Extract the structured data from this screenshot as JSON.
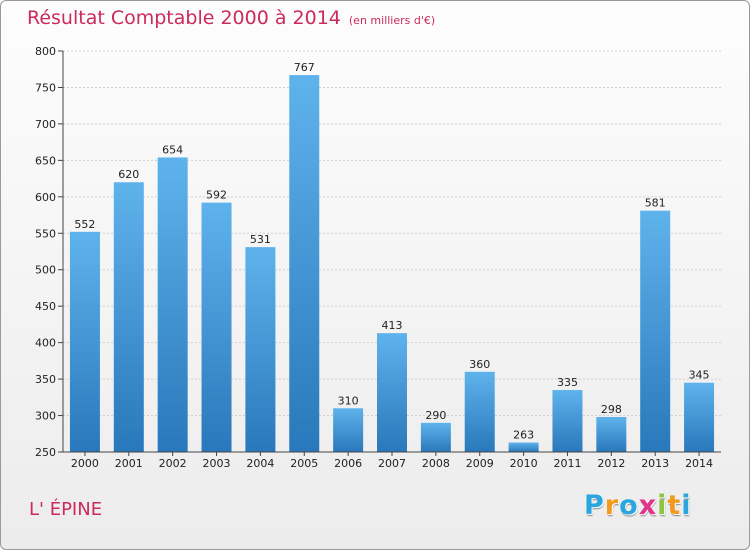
{
  "chart_data": {
    "type": "bar",
    "title": "Résultat Comptable 2000 à 2014",
    "subtitle": "(en milliers d'€)",
    "categories": [
      "2000",
      "2001",
      "2002",
      "2003",
      "2004",
      "2005",
      "2006",
      "2007",
      "2008",
      "2009",
      "2010",
      "2011",
      "2012",
      "2013",
      "2014"
    ],
    "values": [
      552,
      620,
      654,
      592,
      531,
      767,
      310,
      413,
      290,
      360,
      263,
      335,
      298,
      581,
      345
    ],
    "ylim": [
      250,
      800
    ],
    "yticks": [
      250,
      300,
      350,
      400,
      450,
      500,
      550,
      600,
      650,
      700,
      750,
      800
    ],
    "grid": true,
    "xlabel": "",
    "ylabel": ""
  },
  "commune": "L' ÉPINE",
  "logo": {
    "letters": [
      "P",
      "r",
      "o",
      "x",
      "i",
      "t",
      "i"
    ],
    "colors": [
      "#2aa6df",
      "#f39a1e",
      "#2aa6df",
      "#e4318b",
      "#8cc63f",
      "#f39a1e",
      "#2aa6df"
    ]
  },
  "colors": {
    "bar_light": "#5fb3ec",
    "bar_dark": "#2978bb",
    "title": "#cc2a5a"
  }
}
